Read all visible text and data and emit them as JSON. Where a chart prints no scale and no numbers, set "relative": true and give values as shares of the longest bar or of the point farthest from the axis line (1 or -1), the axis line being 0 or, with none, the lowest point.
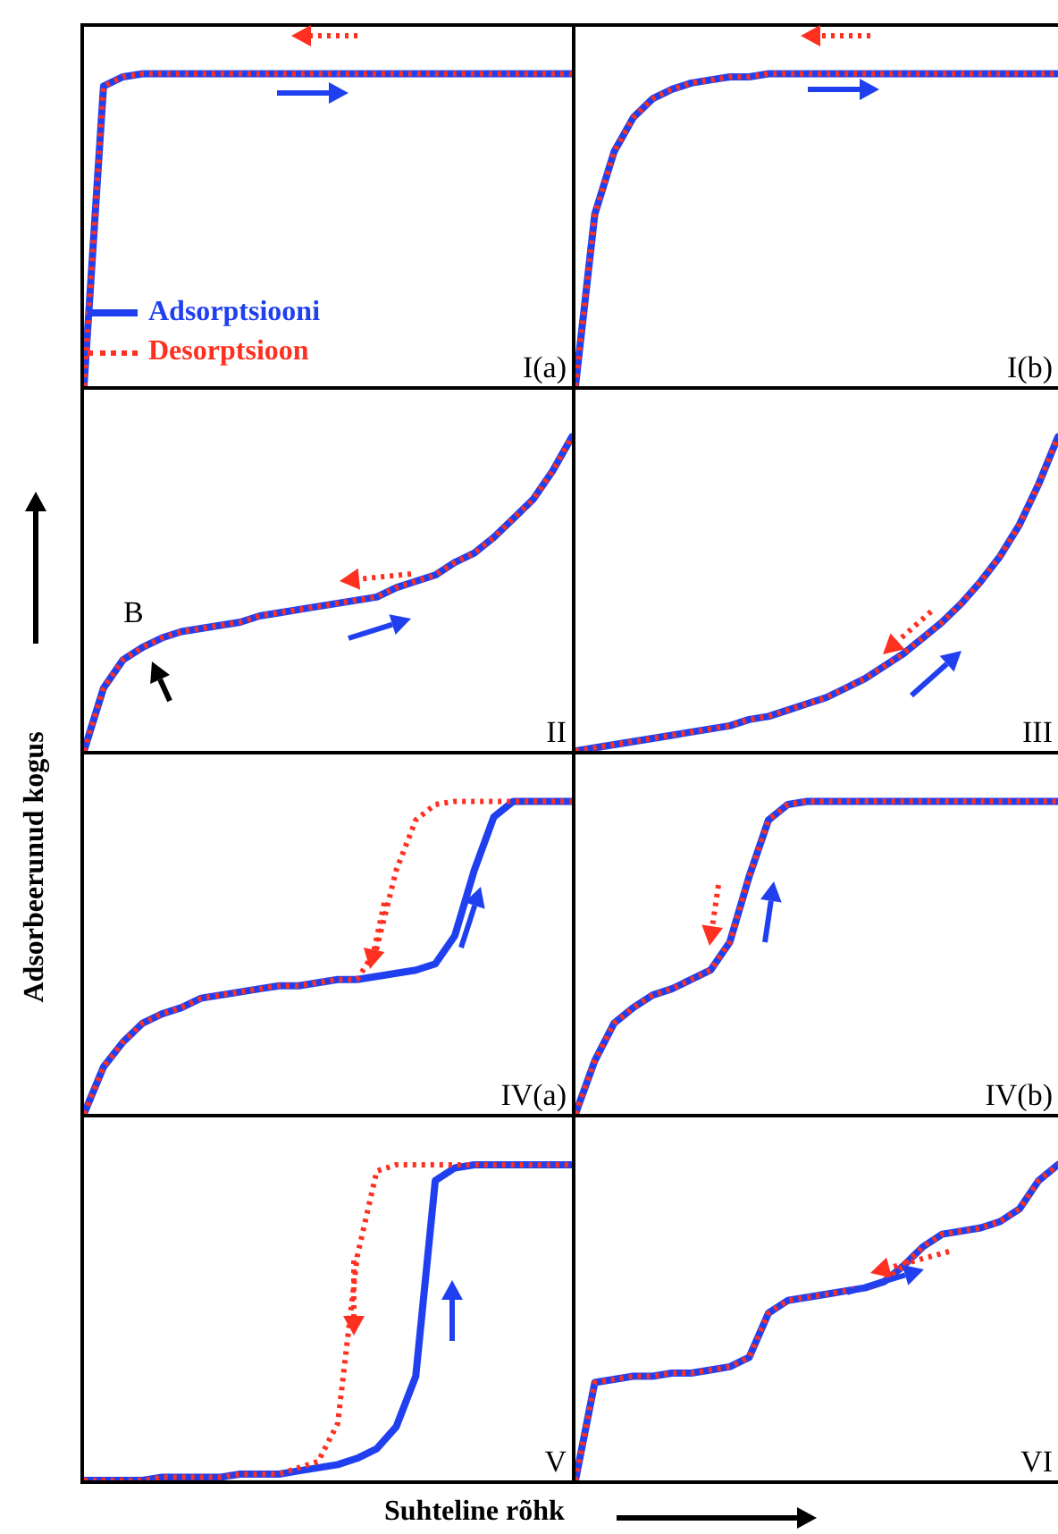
{
  "chart_data": [
    {
      "type": "line",
      "relative": true,
      "marker": "none",
      "legend": "bottom left",
      "annotations": [
        "I(a)"
      ],
      "categories": [
        null,
        null,
        null,
        null,
        null,
        null,
        null,
        null,
        null,
        null,
        null,
        null,
        null,
        null,
        null,
        null,
        null,
        null,
        null,
        null,
        null,
        null,
        null,
        null,
        null,
        null
      ],
      "series": [
        {
          "name": "Adsorptsiooni",
          "color": "#2040f0",
          "line_style": "solid",
          "values": [
            0,
            0.96,
            0.99,
            1,
            1,
            1,
            1,
            1,
            1,
            1,
            1,
            1,
            1,
            1,
            1,
            1,
            1,
            1,
            1,
            1,
            1,
            1,
            1,
            1,
            1,
            1
          ]
        },
        {
          "name": "Desorptsioon",
          "color": "#ff3020",
          "line_style": "dotted",
          "values": [
            0,
            0.96,
            0.99,
            1,
            1,
            1,
            1,
            1,
            1,
            1,
            1,
            1,
            1,
            1,
            1,
            1,
            1,
            1,
            1,
            1,
            1,
            1,
            1,
            1,
            1,
            1
          ]
        }
      ]
    },
    {
      "type": "line",
      "relative": true,
      "marker": "none",
      "annotations": [
        "I(b)"
      ],
      "categories": [
        null,
        null,
        null,
        null,
        null,
        null,
        null,
        null,
        null,
        null,
        null,
        null,
        null,
        null,
        null,
        null,
        null,
        null,
        null,
        null,
        null,
        null,
        null,
        null,
        null,
        null
      ],
      "series": [
        {
          "color": "#2040f0",
          "line_style": "solid",
          "values": [
            0,
            0.55,
            0.75,
            0.86,
            0.92,
            0.95,
            0.97,
            0.98,
            0.99,
            0.99,
            1,
            1,
            1,
            1,
            1,
            1,
            1,
            1,
            1,
            1,
            1,
            1,
            1,
            1,
            1,
            1
          ]
        },
        {
          "color": "#ff3020",
          "line_style": "dotted",
          "values": [
            0,
            0.55,
            0.75,
            0.86,
            0.92,
            0.95,
            0.97,
            0.98,
            0.99,
            0.99,
            1,
            1,
            1,
            1,
            1,
            1,
            1,
            1,
            1,
            1,
            1,
            1,
            1,
            1,
            1,
            1
          ]
        }
      ]
    },
    {
      "type": "line",
      "relative": true,
      "marker": "none",
      "annotations": [
        "II",
        "B"
      ],
      "categories": [
        null,
        null,
        null,
        null,
        null,
        null,
        null,
        null,
        null,
        null,
        null,
        null,
        null,
        null,
        null,
        null,
        null,
        null,
        null,
        null,
        null,
        null,
        null,
        null,
        null,
        null
      ],
      "series": [
        {
          "color": "#2040f0",
          "line_style": "solid",
          "values": [
            0,
            0.2,
            0.29,
            0.33,
            0.36,
            0.38,
            0.39,
            0.4,
            0.41,
            0.43,
            0.44,
            0.45,
            0.46,
            0.47,
            0.48,
            0.49,
            0.52,
            0.54,
            0.56,
            0.6,
            0.63,
            0.68,
            0.74,
            0.8,
            0.89,
            1
          ]
        },
        {
          "color": "#ff3020",
          "line_style": "dotted",
          "values": [
            0,
            0.2,
            0.29,
            0.33,
            0.36,
            0.38,
            0.39,
            0.4,
            0.41,
            0.43,
            0.44,
            0.45,
            0.46,
            0.47,
            0.48,
            0.49,
            0.52,
            0.54,
            0.56,
            0.6,
            0.63,
            0.68,
            0.74,
            0.8,
            0.89,
            1
          ]
        }
      ]
    },
    {
      "type": "line",
      "relative": true,
      "marker": "none",
      "annotations": [
        "III"
      ],
      "categories": [
        null,
        null,
        null,
        null,
        null,
        null,
        null,
        null,
        null,
        null,
        null,
        null,
        null,
        null,
        null,
        null,
        null,
        null,
        null,
        null,
        null,
        null,
        null,
        null,
        null,
        null
      ],
      "series": [
        {
          "color": "#2040f0",
          "line_style": "solid",
          "values": [
            0,
            0.01,
            0.02,
            0.03,
            0.04,
            0.05,
            0.06,
            0.07,
            0.08,
            0.1,
            0.11,
            0.13,
            0.15,
            0.17,
            0.2,
            0.23,
            0.27,
            0.31,
            0.36,
            0.41,
            0.47,
            0.54,
            0.62,
            0.72,
            0.85,
            1
          ]
        },
        {
          "color": "#ff3020",
          "line_style": "dotted",
          "values": [
            0,
            0.01,
            0.02,
            0.03,
            0.04,
            0.05,
            0.06,
            0.07,
            0.08,
            0.1,
            0.11,
            0.13,
            0.15,
            0.17,
            0.2,
            0.23,
            0.27,
            0.31,
            0.36,
            0.41,
            0.47,
            0.54,
            0.62,
            0.72,
            0.85,
            1
          ]
        }
      ]
    },
    {
      "type": "line",
      "relative": true,
      "marker": "none",
      "ylabel": "Adsorbeerunud kogus",
      "annotations": [
        "IV(a)"
      ],
      "categories": [
        null,
        null,
        null,
        null,
        null,
        null,
        null,
        null,
        null,
        null,
        null,
        null,
        null,
        null,
        null,
        null,
        null,
        null,
        null,
        null,
        null,
        null,
        null,
        null,
        null,
        null
      ],
      "series": [
        {
          "color": "#2040f0",
          "line_style": "solid",
          "values": [
            0,
            0.15,
            0.23,
            0.29,
            0.32,
            0.34,
            0.37,
            0.38,
            0.39,
            0.4,
            0.41,
            0.41,
            0.42,
            0.43,
            0.43,
            0.44,
            0.45,
            0.46,
            0.48,
            0.57,
            0.78,
            0.95,
            1,
            1,
            1,
            1
          ]
        },
        {
          "color": "#ff3020",
          "line_style": "dotted",
          "values": [
            0,
            0.15,
            0.23,
            0.29,
            0.32,
            0.34,
            0.37,
            0.38,
            0.39,
            0.4,
            0.41,
            0.41,
            0.42,
            0.43,
            0.43,
            0.53,
            0.78,
            0.94,
            0.99,
            1,
            1,
            1,
            1,
            1,
            1,
            1
          ]
        }
      ]
    },
    {
      "type": "line",
      "relative": true,
      "marker": "none",
      "annotations": [
        "IV(b)"
      ],
      "categories": [
        null,
        null,
        null,
        null,
        null,
        null,
        null,
        null,
        null,
        null,
        null,
        null,
        null,
        null,
        null,
        null,
        null,
        null,
        null,
        null,
        null,
        null,
        null,
        null,
        null,
        null
      ],
      "series": [
        {
          "color": "#2040f0",
          "line_style": "solid",
          "values": [
            0,
            0.17,
            0.29,
            0.34,
            0.38,
            0.4,
            0.43,
            0.46,
            0.55,
            0.76,
            0.94,
            0.99,
            1,
            1,
            1,
            1,
            1,
            1,
            1,
            1,
            1,
            1,
            1,
            1,
            1,
            1
          ]
        },
        {
          "color": "#ff3020",
          "line_style": "dotted",
          "values": [
            0,
            0.17,
            0.29,
            0.34,
            0.38,
            0.4,
            0.43,
            0.46,
            0.55,
            0.76,
            0.94,
            0.99,
            1,
            1,
            1,
            1,
            1,
            1,
            1,
            1,
            1,
            1,
            1,
            1,
            1,
            1
          ]
        }
      ]
    },
    {
      "type": "line",
      "relative": true,
      "marker": "none",
      "xlabel": "Suhteline rõhk",
      "annotations": [
        "V"
      ],
      "categories": [
        null,
        null,
        null,
        null,
        null,
        null,
        null,
        null,
        null,
        null,
        null,
        null,
        null,
        null,
        null,
        null,
        null,
        null,
        null,
        null,
        null,
        null,
        null,
        null,
        null,
        null
      ],
      "series": [
        {
          "color": "#2040f0",
          "line_style": "solid",
          "values": [
            0,
            0,
            0,
            0,
            0.01,
            0.01,
            0.01,
            0.01,
            0.02,
            0.02,
            0.02,
            0.03,
            0.04,
            0.05,
            0.07,
            0.1,
            0.17,
            0.33,
            0.95,
            0.99,
            1,
            1,
            1,
            1,
            1,
            1
          ]
        },
        {
          "color": "#ff3020",
          "line_style": "dotted",
          "values": [
            0,
            0,
            0,
            0,
            0.01,
            0.01,
            0.01,
            0.01,
            0.02,
            0.02,
            0.02,
            0.04,
            0.06,
            0.18,
            0.71,
            0.98,
            1,
            1,
            1,
            1,
            1,
            1,
            1,
            1,
            1,
            1
          ]
        }
      ]
    },
    {
      "type": "line",
      "relative": true,
      "marker": "none",
      "annotations": [
        "VI"
      ],
      "categories": [
        null,
        null,
        null,
        null,
        null,
        null,
        null,
        null,
        null,
        null,
        null,
        null,
        null,
        null,
        null,
        null,
        null,
        null,
        null,
        null,
        null,
        null,
        null,
        null,
        null,
        null
      ],
      "series": [
        {
          "color": "#2040f0",
          "line_style": "solid",
          "values": [
            0,
            0.31,
            0.32,
            0.33,
            0.33,
            0.34,
            0.34,
            0.35,
            0.36,
            0.39,
            0.53,
            0.57,
            0.58,
            0.59,
            0.6,
            0.61,
            0.63,
            0.68,
            0.74,
            0.78,
            0.79,
            0.8,
            0.82,
            0.86,
            0.95,
            1
          ]
        },
        {
          "color": "#ff3020",
          "line_style": "dotted",
          "values": [
            0,
            0.31,
            0.32,
            0.33,
            0.33,
            0.34,
            0.34,
            0.35,
            0.36,
            0.39,
            0.53,
            0.57,
            0.58,
            0.59,
            0.6,
            0.61,
            0.63,
            0.68,
            0.74,
            0.78,
            0.79,
            0.8,
            0.82,
            0.86,
            0.95,
            1
          ]
        }
      ]
    }
  ]
}
